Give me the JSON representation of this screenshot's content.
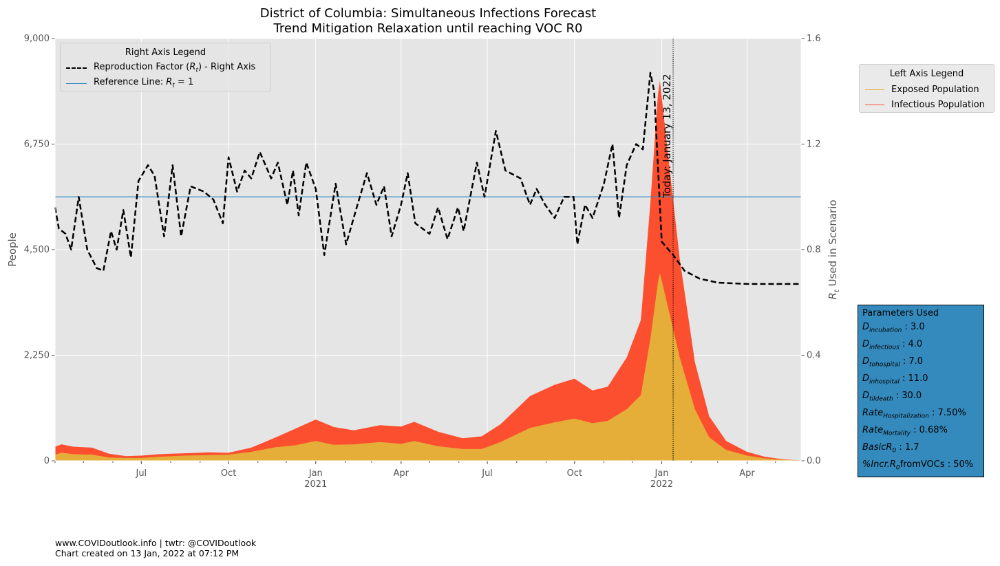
{
  "chart_data": {
    "type": "area",
    "title": "District of Columbia: Simultaneous Infections Forecast",
    "subtitle": "Trend Mitigation Relaxation until reaching VOC R0",
    "ylabel_left": "People",
    "ylabel_right": "R_t Used in Scenario",
    "ylim_left": [
      0,
      9000
    ],
    "ylim_right": [
      0,
      1.6
    ],
    "yticks_left": [
      "0",
      "2,250",
      "4,500",
      "6,750",
      "9,000"
    ],
    "yticks_right": [
      "0.0",
      "0.4",
      "0.8",
      "1.2",
      "1.6"
    ],
    "xlim": [
      "2020-04-01",
      "2022-05-28"
    ],
    "xticks": [
      {
        "date": "2020-07-01",
        "label": "Jul",
        "sub": ""
      },
      {
        "date": "2020-10-01",
        "label": "Oct",
        "sub": ""
      },
      {
        "date": "2021-01-01",
        "label": "Jan",
        "sub": "2021"
      },
      {
        "date": "2021-04-01",
        "label": "Apr",
        "sub": ""
      },
      {
        "date": "2021-07-01",
        "label": "Jul",
        "sub": ""
      },
      {
        "date": "2021-10-01",
        "label": "Oct",
        "sub": ""
      },
      {
        "date": "2022-01-01",
        "label": "Jan",
        "sub": "2022"
      },
      {
        "date": "2022-04-01",
        "label": "Apr",
        "sub": ""
      }
    ],
    "grid": true,
    "today_label": "Today: January 13, 2022",
    "today_date": "2022-01-13",
    "reference_line_rt": 1.0,
    "series": [
      {
        "name": "Exposed Population",
        "color": "#e5ae38",
        "axis": "left",
        "points": [
          [
            "2020-04-01",
            130
          ],
          [
            "2020-04-08",
            170
          ],
          [
            "2020-04-20",
            140
          ],
          [
            "2020-05-10",
            130
          ],
          [
            "2020-05-28",
            70
          ],
          [
            "2020-06-15",
            60
          ],
          [
            "2020-07-01",
            60
          ],
          [
            "2020-07-20",
            85
          ],
          [
            "2020-08-15",
            110
          ],
          [
            "2020-09-10",
            120
          ],
          [
            "2020-10-01",
            130
          ],
          [
            "2020-10-25",
            190
          ],
          [
            "2020-11-20",
            290
          ],
          [
            "2020-12-10",
            330
          ],
          [
            "2021-01-01",
            420
          ],
          [
            "2021-01-20",
            340
          ],
          [
            "2021-02-10",
            350
          ],
          [
            "2021-03-10",
            400
          ],
          [
            "2021-04-01",
            360
          ],
          [
            "2021-04-15",
            420
          ],
          [
            "2021-05-10",
            310
          ],
          [
            "2021-06-05",
            250
          ],
          [
            "2021-06-25",
            250
          ],
          [
            "2021-07-15",
            400
          ],
          [
            "2021-08-15",
            700
          ],
          [
            "2021-09-10",
            820
          ],
          [
            "2021-10-01",
            900
          ],
          [
            "2021-10-20",
            800
          ],
          [
            "2021-11-05",
            850
          ],
          [
            "2021-11-25",
            1100
          ],
          [
            "2021-12-10",
            1400
          ],
          [
            "2021-12-20",
            2600
          ],
          [
            "2021-12-28",
            3800
          ],
          [
            "2021-12-30",
            4000
          ],
          [
            "2022-01-05",
            3500
          ],
          [
            "2022-01-20",
            2200
          ],
          [
            "2022-02-05",
            1100
          ],
          [
            "2022-02-20",
            500
          ],
          [
            "2022-03-10",
            230
          ],
          [
            "2022-04-01",
            110
          ],
          [
            "2022-04-20",
            50
          ],
          [
            "2022-05-10",
            20
          ],
          [
            "2022-05-28",
            5
          ]
        ]
      },
      {
        "name": "Infectious Population",
        "color": "#fc4f30",
        "axis": "left",
        "points": [
          [
            "2020-04-01",
            300
          ],
          [
            "2020-04-08",
            350
          ],
          [
            "2020-04-20",
            300
          ],
          [
            "2020-05-10",
            280
          ],
          [
            "2020-05-28",
            150
          ],
          [
            "2020-06-15",
            100
          ],
          [
            "2020-07-01",
            110
          ],
          [
            "2020-07-20",
            140
          ],
          [
            "2020-08-15",
            160
          ],
          [
            "2020-09-10",
            180
          ],
          [
            "2020-10-01",
            170
          ],
          [
            "2020-10-25",
            280
          ],
          [
            "2020-11-20",
            500
          ],
          [
            "2020-12-10",
            680
          ],
          [
            "2021-01-01",
            880
          ],
          [
            "2021-01-20",
            720
          ],
          [
            "2021-02-10",
            650
          ],
          [
            "2021-03-10",
            760
          ],
          [
            "2021-04-01",
            730
          ],
          [
            "2021-04-15",
            830
          ],
          [
            "2021-05-10",
            620
          ],
          [
            "2021-06-05",
            480
          ],
          [
            "2021-06-25",
            520
          ],
          [
            "2021-07-15",
            780
          ],
          [
            "2021-08-15",
            1380
          ],
          [
            "2021-09-10",
            1620
          ],
          [
            "2021-10-01",
            1750
          ],
          [
            "2021-10-20",
            1500
          ],
          [
            "2021-11-05",
            1580
          ],
          [
            "2021-11-25",
            2200
          ],
          [
            "2021-12-10",
            3000
          ],
          [
            "2021-12-20",
            5500
          ],
          [
            "2021-12-28",
            7800
          ],
          [
            "2021-12-30",
            8100
          ],
          [
            "2022-01-05",
            7000
          ],
          [
            "2022-01-20",
            4300
          ],
          [
            "2022-02-05",
            2100
          ],
          [
            "2022-02-20",
            950
          ],
          [
            "2022-03-10",
            420
          ],
          [
            "2022-04-01",
            190
          ],
          [
            "2022-04-20",
            85
          ],
          [
            "2022-05-10",
            30
          ],
          [
            "2022-05-28",
            8
          ]
        ]
      },
      {
        "name": "Reproduction Factor (R_t) - Right Axis",
        "color": "#000000",
        "axis": "right",
        "style": "dashed",
        "points": [
          [
            "2020-04-01",
            0.96
          ],
          [
            "2020-04-05",
            0.88
          ],
          [
            "2020-04-12",
            0.86
          ],
          [
            "2020-04-18",
            0.8
          ],
          [
            "2020-04-26",
            1.0
          ],
          [
            "2020-05-05",
            0.8
          ],
          [
            "2020-05-15",
            0.73
          ],
          [
            "2020-05-22",
            0.72
          ],
          [
            "2020-05-30",
            0.87
          ],
          [
            "2020-06-05",
            0.8
          ],
          [
            "2020-06-12",
            0.95
          ],
          [
            "2020-06-20",
            0.77
          ],
          [
            "2020-06-28",
            1.06
          ],
          [
            "2020-07-08",
            1.12
          ],
          [
            "2020-07-15",
            1.08
          ],
          [
            "2020-07-25",
            0.85
          ],
          [
            "2020-08-03",
            1.12
          ],
          [
            "2020-08-12",
            0.85
          ],
          [
            "2020-08-22",
            1.04
          ],
          [
            "2020-09-05",
            1.02
          ],
          [
            "2020-09-15",
            0.99
          ],
          [
            "2020-09-25",
            0.9
          ],
          [
            "2020-10-01",
            1.15
          ],
          [
            "2020-10-10",
            1.02
          ],
          [
            "2020-10-18",
            1.1
          ],
          [
            "2020-10-25",
            1.07
          ],
          [
            "2020-11-03",
            1.17
          ],
          [
            "2020-11-15",
            1.07
          ],
          [
            "2020-11-22",
            1.13
          ],
          [
            "2020-12-02",
            0.97
          ],
          [
            "2020-12-08",
            1.1
          ],
          [
            "2020-12-14",
            0.93
          ],
          [
            "2020-12-22",
            1.13
          ],
          [
            "2021-01-01",
            1.03
          ],
          [
            "2021-01-10",
            0.78
          ],
          [
            "2021-01-22",
            1.05
          ],
          [
            "2021-02-02",
            0.82
          ],
          [
            "2021-02-14",
            0.97
          ],
          [
            "2021-02-24",
            1.09
          ],
          [
            "2021-03-06",
            0.97
          ],
          [
            "2021-03-14",
            1.04
          ],
          [
            "2021-03-22",
            0.85
          ],
          [
            "2021-04-01",
            0.97
          ],
          [
            "2021-04-08",
            1.09
          ],
          [
            "2021-04-16",
            0.9
          ],
          [
            "2021-05-01",
            0.86
          ],
          [
            "2021-05-10",
            0.96
          ],
          [
            "2021-05-20",
            0.84
          ],
          [
            "2021-05-31",
            0.96
          ],
          [
            "2021-06-06",
            0.87
          ],
          [
            "2021-06-20",
            1.13
          ],
          [
            "2021-06-28",
            1.0
          ],
          [
            "2021-07-10",
            1.25
          ],
          [
            "2021-07-20",
            1.1
          ],
          [
            "2021-08-05",
            1.07
          ],
          [
            "2021-08-15",
            0.97
          ],
          [
            "2021-08-22",
            1.03
          ],
          [
            "2021-08-31",
            0.97
          ],
          [
            "2021-09-10",
            0.92
          ],
          [
            "2021-09-20",
            1.0
          ],
          [
            "2021-09-30",
            1.0
          ],
          [
            "2021-10-04",
            0.82
          ],
          [
            "2021-10-12",
            0.97
          ],
          [
            "2021-10-20",
            0.92
          ],
          [
            "2021-11-01",
            1.05
          ],
          [
            "2021-11-10",
            1.2
          ],
          [
            "2021-11-17",
            0.92
          ],
          [
            "2021-11-25",
            1.12
          ],
          [
            "2021-12-05",
            1.2
          ],
          [
            "2021-12-12",
            1.18
          ],
          [
            "2021-12-20",
            1.47
          ],
          [
            "2021-12-24",
            1.4
          ],
          [
            "2022-01-01",
            0.83
          ],
          [
            "2022-01-13",
            0.78
          ],
          [
            "2022-01-25",
            0.72
          ],
          [
            "2022-02-10",
            0.69
          ],
          [
            "2022-03-01",
            0.675
          ],
          [
            "2022-04-01",
            0.67
          ],
          [
            "2022-05-28",
            0.67
          ]
        ]
      },
      {
        "name": "Reference Line: R_t = 1",
        "color": "#348abd",
        "axis": "right",
        "points": [
          [
            "2020-04-01",
            1.0
          ],
          [
            "2022-05-28",
            1.0
          ]
        ]
      }
    ]
  },
  "legends": {
    "right_axis": {
      "title": "Right Axis Legend",
      "items": [
        {
          "label_pre": "Reproduction Factor (",
          "label_math": "R",
          "label_sub": "t",
          "label_post": ") - Right Axis",
          "color": "#000000",
          "style": "dashed"
        },
        {
          "label_pre": "Reference Line: ",
          "label_math": "R",
          "label_sub": "t",
          "label_post": " = 1",
          "color": "#348abd",
          "style": "solid"
        }
      ]
    },
    "left_axis": {
      "title": "Left Axis Legend",
      "items": [
        {
          "label": "Exposed Population",
          "color": "#e5ae38"
        },
        {
          "label": "Infectious Population",
          "color": "#fc4f30"
        }
      ]
    }
  },
  "parameters": {
    "title": "Parameters Used",
    "items": [
      {
        "base": "D",
        "sub": "incubation",
        "value": " : 3.0"
      },
      {
        "base": "D",
        "sub": "infectious",
        "value": " : 4.0"
      },
      {
        "base": "D",
        "sub": "tohospital",
        "value": " : 7.0"
      },
      {
        "base": "D",
        "sub": "inhospital",
        "value": " : 11.0"
      },
      {
        "base": "D",
        "sub": "tildeath",
        "value": " : 30.0"
      },
      {
        "base": "Rate",
        "sub": "Hospitalization",
        "value": " : 7.50%"
      },
      {
        "base": "Rate",
        "sub": "Mortality",
        "value": " : 0.68%"
      },
      {
        "base": "BasicR",
        "sub": "0",
        "value": " : 1.7"
      },
      {
        "base": "%Incr.R",
        "sub": "0",
        "value": "fromVOCs : 50%"
      }
    ]
  },
  "footer": {
    "line1": "www.COVIDoutlook.info | twtr: @COVIDoutlook",
    "line2": "Chart created on 13 Jan, 2022 at 07:12 PM"
  }
}
